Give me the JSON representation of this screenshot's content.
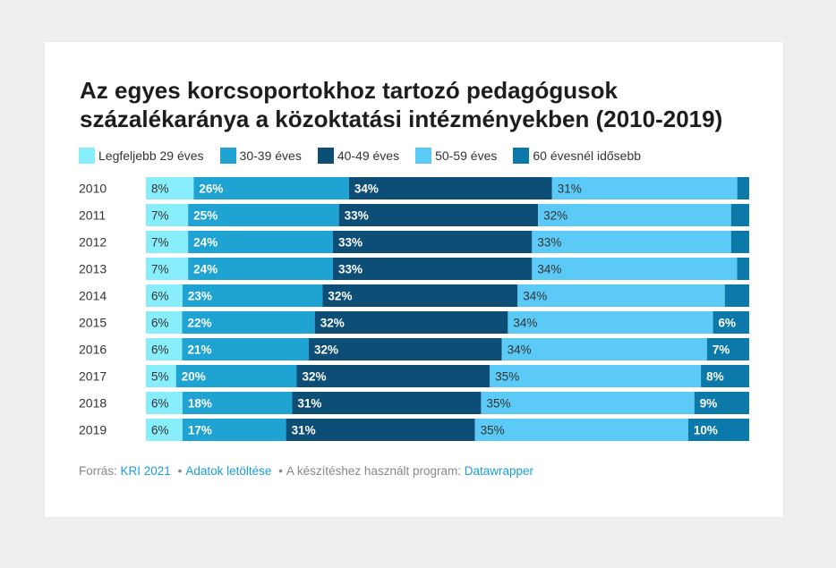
{
  "title": "Az egyes korcsoportokhoz tartozó pedagógusok százalékaránya a közoktatási intézményekben (2010-2019)",
  "chart_data": {
    "type": "bar",
    "orientation": "horizontal",
    "stacked": true,
    "categories": [
      "2010",
      "2011",
      "2012",
      "2013",
      "2014",
      "2015",
      "2016",
      "2017",
      "2018",
      "2019"
    ],
    "series": [
      {
        "name": "Legfeljebb 29 éves",
        "color": "#89eefb",
        "values": [
          8,
          7,
          7,
          7,
          6,
          6,
          6,
          5,
          6,
          6
        ]
      },
      {
        "name": "30-39 éves",
        "color": "#1ea3d2",
        "values": [
          26,
          25,
          24,
          24,
          23,
          22,
          21,
          20,
          18,
          17
        ]
      },
      {
        "name": "40-49 éves",
        "color": "#0d4e77",
        "values": [
          34,
          33,
          33,
          33,
          32,
          32,
          32,
          32,
          31,
          31
        ]
      },
      {
        "name": "50-59 éves",
        "color": "#5ccaf6",
        "values": [
          31,
          32,
          33,
          34,
          34,
          34,
          34,
          35,
          35,
          35
        ]
      },
      {
        "name": "60 évesnél idősebb",
        "color": "#0b79a9",
        "values": [
          2,
          3,
          3,
          2,
          4,
          6,
          7,
          8,
          9,
          10
        ]
      }
    ],
    "value_labels": [
      [
        "8%",
        "26%",
        "34%",
        "31%",
        ""
      ],
      [
        "7%",
        "25%",
        "33%",
        "32%",
        ""
      ],
      [
        "7%",
        "24%",
        "33%",
        "33%",
        ""
      ],
      [
        "7%",
        "24%",
        "33%",
        "34%",
        ""
      ],
      [
        "6%",
        "23%",
        "32%",
        "34%",
        ""
      ],
      [
        "6%",
        "22%",
        "32%",
        "34%",
        "6%"
      ],
      [
        "6%",
        "21%",
        "32%",
        "34%",
        "7%"
      ],
      [
        "5%",
        "20%",
        "32%",
        "35%",
        "8%"
      ],
      [
        "6%",
        "18%",
        "31%",
        "35%",
        "9%"
      ],
      [
        "6%",
        "17%",
        "31%",
        "35%",
        "10%"
      ]
    ],
    "label_colors": [
      "#333333",
      "#ffffff",
      "#ffffff",
      "#333333",
      "#ffffff"
    ],
    "label_bold": [
      false,
      true,
      true,
      false,
      true
    ],
    "legend_position": "top",
    "grid": false
  },
  "footer": {
    "source_prefix": "Forrás:",
    "source_link": "KRI 2021",
    "sep1": "•",
    "download_link": "Adatok letöltése",
    "sep2": "•",
    "program_text": "A készítéshez használt program:",
    "program_link": "Datawrapper"
  }
}
